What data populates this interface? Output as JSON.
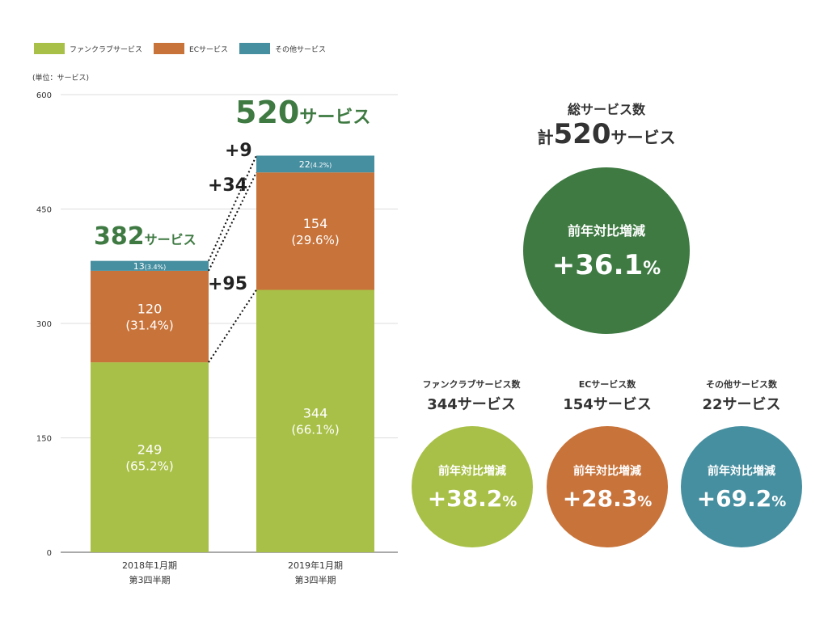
{
  "legend": [
    {
      "label": "ファンクラブサービス",
      "color": "#a8c047"
    },
    {
      "label": "ECサービス",
      "color": "#c8733a"
    },
    {
      "label": "その他サービス",
      "color": "#468fa0"
    }
  ],
  "unit_label": "(単位：サービス)",
  "chart_data": {
    "type": "bar",
    "stacked": true,
    "categories": [
      "2018年1月期\n第3四半期",
      "2019年1月期\n第3四半期"
    ],
    "category_lines": [
      [
        "2018年1月期",
        "第3四半期"
      ],
      [
        "2019年1月期",
        "第3四半期"
      ]
    ],
    "series": [
      {
        "name": "ファンクラブサービス",
        "values": [
          249,
          344
        ],
        "color": "#a8c047",
        "labels": [
          [
            "249",
            "(65.2%)"
          ],
          [
            "344",
            "(66.1%)"
          ]
        ]
      },
      {
        "name": "ECサービス",
        "values": [
          120,
          154
        ],
        "color": "#c8733a",
        "labels": [
          [
            "120",
            "(31.4%)"
          ],
          [
            "154",
            "(29.6%)"
          ]
        ]
      },
      {
        "name": "その他サービス",
        "values": [
          13,
          22
        ],
        "color": "#468fa0",
        "labels": [
          [
            "13",
            "(3.4%)"
          ],
          [
            "22",
            "(4.2%)"
          ]
        ]
      }
    ],
    "ylim": [
      0,
      600
    ],
    "yticks": [
      0,
      150,
      300,
      450,
      600
    ],
    "grid": true,
    "totals": [
      {
        "value": "382",
        "suffix": "サービス"
      },
      {
        "value": "520",
        "suffix": "サービス"
      }
    ],
    "differences": [
      "+95",
      "+34",
      "+9"
    ],
    "connector_style": "dotted"
  },
  "summary": {
    "title": "総サービス数",
    "total_prefix": "計",
    "total_value": "520",
    "total_suffix": "サービス",
    "circle_label": "前年対比増減",
    "circle_value": "+36.1",
    "circle_unit": "%",
    "circle_color": "#3e7a42"
  },
  "categories_summary": [
    {
      "title": "ファンクラブサービス数",
      "count": "344サービス",
      "circle_label": "前年対比増減",
      "value": "+38.2",
      "unit": "%",
      "color": "#a8c047"
    },
    {
      "title": "ECサービス数",
      "count": "154サービス",
      "circle_label": "前年対比増減",
      "value": "+28.3",
      "unit": "%",
      "color": "#c8733a"
    },
    {
      "title": "その他サービス数",
      "count": "22サービス",
      "circle_label": "前年対比増減",
      "value": "+69.2",
      "unit": "%",
      "color": "#468fa0"
    }
  ],
  "colors": {
    "total_text": "#3e7a42",
    "axis": "#555555",
    "grid": "#dddddd"
  }
}
